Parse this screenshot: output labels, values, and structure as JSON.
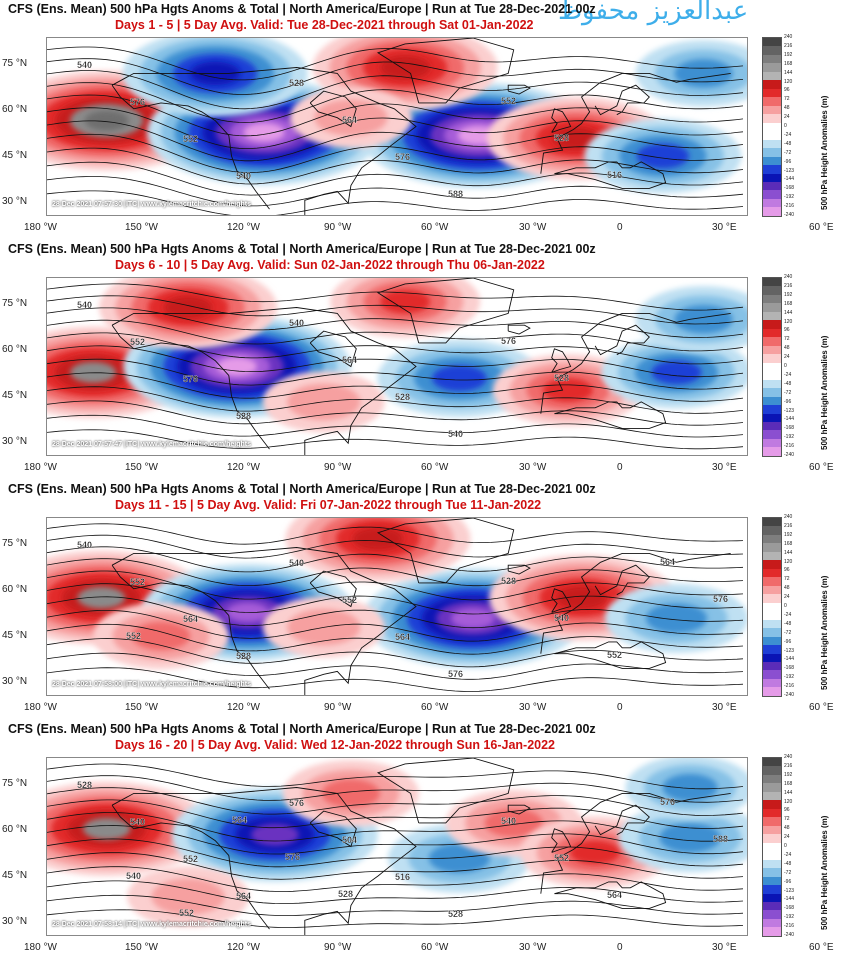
{
  "watermark": "عبدالعزيز محفوظ",
  "panels": [
    {
      "title": "CFS (Ens. Mean) 500 hPa Hgts Anoms & Total  | North America/Europe  | Run at Tue 28-Dec-2021 00z",
      "subtitle": "Days 1 - 5 | 5 Day Avg. Valid: Tue 28-Dec-2021 through Sat 01-Jan-2022",
      "stamp": "28 Dec 2021 07:57:30 |ITC| www.kylemacritchie.com/heights",
      "anomalies": [
        {
          "lon": -170,
          "lat": 54,
          "value": 200
        },
        {
          "lon": -112,
          "lat": 50,
          "value": -220
        },
        {
          "lon": -130,
          "lat": 70,
          "value": -150
        },
        {
          "lon": -33,
          "lat": 49,
          "value": -220
        },
        {
          "lon": -60,
          "lat": 72,
          "value": 150
        },
        {
          "lon": 3,
          "lat": 48,
          "value": 140
        },
        {
          "lon": 35,
          "lat": 42,
          "value": -110
        },
        {
          "lon": 50,
          "lat": 70,
          "value": -80
        },
        {
          "lon": -80,
          "lat": 55,
          "value": 60
        }
      ],
      "contour_labels": [
        "540",
        "576",
        "552",
        "540",
        "528",
        "564",
        "576",
        "588",
        "552",
        "528",
        "516"
      ]
    },
    {
      "title": "CFS (Ens. Mean) 500 hPa Hgts Anoms & Total  | North America/Europe  | Run at Tue 28-Dec-2021 00z",
      "subtitle": "Days 6 - 10 | 5 Day Avg. Valid: Sun 02-Jan-2022 through Thu 06-Jan-2022",
      "stamp": "28 Dec 2021 07:57:47 |ITC| www.kylemacritchie.com/heights",
      "anomalies": [
        {
          "lon": -175,
          "lat": 50,
          "value": 170
        },
        {
          "lon": -122,
          "lat": 52,
          "value": -210
        },
        {
          "lon": -140,
          "lat": 72,
          "value": 140
        },
        {
          "lon": -40,
          "lat": 48,
          "value": -120
        },
        {
          "lon": -60,
          "lat": 74,
          "value": 100
        },
        {
          "lon": 0,
          "lat": 44,
          "value": 100
        },
        {
          "lon": 40,
          "lat": 50,
          "value": -100
        },
        {
          "lon": 50,
          "lat": 68,
          "value": -80
        },
        {
          "lon": -90,
          "lat": 40,
          "value": 60
        }
      ],
      "contour_labels": [
        "540",
        "552",
        "576",
        "528",
        "540",
        "564",
        "528",
        "540",
        "576",
        "528"
      ]
    },
    {
      "title": "CFS (Ens. Mean) 500 hPa Hgts Anoms & Total  | North America/Europe  | Run at Tue 28-Dec-2021 00z",
      "subtitle": "Days 11 - 15 | 5 Day Avg. Valid: Fri 07-Jan-2022 through Tue 11-Jan-2022",
      "stamp": "28 Dec 2021 07:58:00 |ITC| www.kylemacritchie.com/heights",
      "anomalies": [
        {
          "lon": -172,
          "lat": 55,
          "value": 180
        },
        {
          "lon": -118,
          "lat": 50,
          "value": -190
        },
        {
          "lon": -35,
          "lat": 48,
          "value": -200
        },
        {
          "lon": -70,
          "lat": 75,
          "value": 150
        },
        {
          "lon": 5,
          "lat": 55,
          "value": 150
        },
        {
          "lon": 40,
          "lat": 48,
          "value": -90
        },
        {
          "lon": -150,
          "lat": 42,
          "value": 80
        },
        {
          "lon": -90,
          "lat": 45,
          "value": 60
        }
      ],
      "contour_labels": [
        "540",
        "552",
        "564",
        "528",
        "540",
        "552",
        "564",
        "576",
        "528",
        "540",
        "552",
        "564",
        "576",
        "552"
      ]
    },
    {
      "title": "CFS (Ens. Mean) 500 hPa Hgts Anoms & Total  | North America/Europe  | Run at Tue 28-Dec-2021 00z",
      "subtitle": "Days 16 - 20 | 5 Day Avg. Valid: Wed 12-Jan-2022 through Sun 16-Jan-2022",
      "stamp": "28 Dec 2021 07:58:14 |ITC| www.kylemacritchie.com/heights",
      "anomalies": [
        {
          "lon": -170,
          "lat": 58,
          "value": 180
        },
        {
          "lon": -108,
          "lat": 56,
          "value": -180
        },
        {
          "lon": -40,
          "lat": 48,
          "value": -90
        },
        {
          "lon": -80,
          "lat": 70,
          "value": 80
        },
        {
          "lon": -20,
          "lat": 60,
          "value": 80
        },
        {
          "lon": 10,
          "lat": 50,
          "value": 100
        },
        {
          "lon": 45,
          "lat": 55,
          "value": -90
        },
        {
          "lon": 45,
          "lat": 72,
          "value": -70
        },
        {
          "lon": -140,
          "lat": 35,
          "value": 60
        }
      ],
      "contour_labels": [
        "528",
        "540",
        "552",
        "564",
        "576",
        "504",
        "516",
        "528",
        "540",
        "552",
        "564",
        "576",
        "588",
        "540",
        "552",
        "564",
        "576",
        "528"
      ]
    }
  ],
  "lat_labels": [
    "75 °N",
    "60 °N",
    "45 °N",
    "30 °N"
  ],
  "lon_labels": [
    "180 °W",
    "150 °W",
    "120 °W",
    "90 °W",
    "60 °W",
    "30 °W",
    "0",
    "30 °E",
    "60 °E"
  ],
  "colorbar": {
    "title": "500 hPa Height Anomalies (m)",
    "levels": [
      "240",
      "216",
      "192",
      "168",
      "144",
      "120",
      "96",
      "72",
      "48",
      "24",
      "0",
      "-24",
      "-48",
      "-72",
      "-96",
      "-123",
      "-144",
      "-168",
      "-192",
      "-216",
      "-240"
    ],
    "colors": [
      "#444444",
      "#636363",
      "#7e7e7e",
      "#9a9a9a",
      "#b3b3b3",
      "#c71a1a",
      "#e22a2a",
      "#f06a6a",
      "#f6a0a0",
      "#fbcfcf",
      "#ffffff",
      "#ffffff",
      "#bfe0f2",
      "#86c1e6",
      "#3d8fd1",
      "#1f3fd6",
      "#0a14b5",
      "#5a2cb8",
      "#8b4fd0",
      "#c07ae0",
      "#e59be8"
    ]
  }
}
